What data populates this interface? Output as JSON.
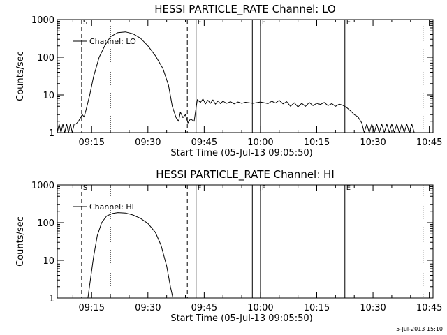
{
  "stamp": "5-Jul-2013 15:10",
  "chart_data": [
    {
      "type": "line",
      "title": "HESSI PARTICLE_RATE Channel: LO",
      "ylabel": "Counts/sec",
      "xlabel": "Start Time (05-Jul-13 09:05:50)",
      "y_scale": "log",
      "ylim": [
        1,
        1000
      ],
      "y_ticks": [
        1,
        10,
        100,
        1000
      ],
      "y_tick_labels": [
        "1",
        "10",
        "100",
        "1000"
      ],
      "xlim": [
        "09:05:50",
        "10:46:00"
      ],
      "x_ticks": [
        "09:15",
        "09:30",
        "09:45",
        "10:00",
        "10:15",
        "10:30",
        "10:45"
      ],
      "grid": false,
      "legend": {
        "position": "top-left",
        "label": "Channel: LO"
      },
      "flags": [
        {
          "label": "S",
          "time": "09:12:20",
          "style": "dashed"
        },
        {
          "label": "",
          "time": "09:20:00",
          "style": "dotted"
        },
        {
          "label": "",
          "time": "09:40:30",
          "style": "dashed"
        },
        {
          "label": "F",
          "time": "09:42:50",
          "style": "solid"
        },
        {
          "label": "",
          "time": "09:57:50",
          "style": "solid"
        },
        {
          "label": "F",
          "time": "10:00:00",
          "style": "solid"
        },
        {
          "label": "E",
          "time": "10:22:30",
          "style": "solid"
        },
        {
          "label": "",
          "time": "10:43:20",
          "style": "dotted"
        }
      ],
      "series": [
        {
          "name": "Channel: LO",
          "points": [
            [
              "09:05:50",
              1.0
            ],
            [
              "09:06:20",
              1.7
            ],
            [
              "09:06:50",
              1.0
            ],
            [
              "09:07:20",
              1.7
            ],
            [
              "09:07:50",
              1.0
            ],
            [
              "09:08:20",
              1.7
            ],
            [
              "09:08:50",
              1.0
            ],
            [
              "09:09:20",
              1.7
            ],
            [
              "09:09:50",
              1.0
            ],
            [
              "09:10:20",
              1.7
            ],
            [
              "09:10:50",
              1.7
            ],
            [
              "09:11:30",
              2.0
            ],
            [
              "09:12:30",
              3.0
            ],
            [
              "09:13:00",
              2.6
            ],
            [
              "09:13:30",
              4.0
            ],
            [
              "09:14:30",
              10
            ],
            [
              "09:15:30",
              30
            ],
            [
              "09:17:00",
              100
            ],
            [
              "09:18:30",
              200
            ],
            [
              "09:20:00",
              350
            ],
            [
              "09:22:00",
              450
            ],
            [
              "09:24:00",
              470
            ],
            [
              "09:26:00",
              420
            ],
            [
              "09:28:00",
              320
            ],
            [
              "09:30:00",
              200
            ],
            [
              "09:32:00",
              110
            ],
            [
              "09:34:00",
              50
            ],
            [
              "09:35:30",
              18
            ],
            [
              "09:36:30",
              5
            ],
            [
              "09:37:30",
              2.5
            ],
            [
              "09:38:10",
              2.0
            ],
            [
              "09:38:40",
              3.5
            ],
            [
              "09:39:20",
              2.5
            ],
            [
              "09:40:00",
              3.0
            ],
            [
              "09:40:40",
              1.8
            ],
            [
              "09:41:20",
              2.3
            ],
            [
              "09:42:20",
              2.0
            ],
            [
              "09:43:10",
              7.5
            ],
            [
              "09:44:00",
              6.3
            ],
            [
              "09:44:40",
              7.8
            ],
            [
              "09:45:20",
              5.8
            ],
            [
              "09:46:00",
              7.2
            ],
            [
              "09:46:40",
              6.0
            ],
            [
              "09:47:20",
              7.4
            ],
            [
              "09:48:00",
              5.7
            ],
            [
              "09:48:40",
              7.0
            ],
            [
              "09:49:20",
              5.9
            ],
            [
              "09:50:00",
              6.8
            ],
            [
              "09:51:00",
              6.0
            ],
            [
              "09:52:00",
              6.6
            ],
            [
              "09:53:00",
              5.8
            ],
            [
              "09:54:00",
              6.5
            ],
            [
              "09:55:00",
              6.0
            ],
            [
              "09:56:00",
              6.4
            ],
            [
              "09:58:00",
              6.0
            ],
            [
              "10:00:00",
              6.5
            ],
            [
              "10:02:00",
              5.9
            ],
            [
              "10:03:00",
              6.8
            ],
            [
              "10:04:00",
              6.1
            ],
            [
              "10:05:00",
              7.2
            ],
            [
              "10:06:00",
              5.8
            ],
            [
              "10:07:00",
              6.6
            ],
            [
              "10:08:00",
              5.0
            ],
            [
              "10:09:00",
              6.2
            ],
            [
              "10:10:00",
              4.8
            ],
            [
              "10:11:00",
              6.0
            ],
            [
              "10:12:00",
              5.0
            ],
            [
              "10:13:00",
              6.3
            ],
            [
              "10:14:00",
              5.2
            ],
            [
              "10:15:00",
              6.0
            ],
            [
              "10:16:00",
              5.6
            ],
            [
              "10:17:00",
              6.3
            ],
            [
              "10:18:00",
              5.2
            ],
            [
              "10:19:00",
              5.9
            ],
            [
              "10:20:00",
              5.0
            ],
            [
              "10:21:00",
              5.7
            ],
            [
              "10:22:00",
              5.3
            ],
            [
              "10:23:00",
              4.6
            ],
            [
              "10:24:00",
              3.8
            ],
            [
              "10:25:00",
              3.0
            ],
            [
              "10:26:00",
              2.6
            ],
            [
              "10:27:00",
              1.8
            ],
            [
              "10:27:40",
              1.0
            ],
            [
              "10:28:20",
              1.7
            ],
            [
              "10:29:00",
              1.0
            ],
            [
              "10:29:40",
              1.7
            ],
            [
              "10:30:20",
              1.0
            ],
            [
              "10:31:00",
              1.7
            ],
            [
              "10:31:40",
              1.0
            ],
            [
              "10:32:20",
              1.7
            ],
            [
              "10:33:00",
              1.0
            ],
            [
              "10:33:40",
              1.7
            ],
            [
              "10:34:20",
              1.0
            ],
            [
              "10:35:00",
              1.7
            ],
            [
              "10:35:40",
              1.0
            ],
            [
              "10:36:20",
              1.7
            ],
            [
              "10:37:00",
              1.0
            ],
            [
              "10:37:40",
              1.7
            ],
            [
              "10:38:20",
              1.0
            ],
            [
              "10:39:00",
              1.7
            ],
            [
              "10:39:40",
              1.0
            ],
            [
              "10:40:20",
              1.7
            ],
            [
              "10:41:00",
              1.0
            ]
          ]
        }
      ]
    },
    {
      "type": "line",
      "title": "HESSI PARTICLE_RATE Channel: HI",
      "ylabel": "Counts/sec",
      "xlabel": "Start Time (05-Jul-13 09:05:50)",
      "y_scale": "log",
      "ylim": [
        1,
        1000
      ],
      "y_ticks": [
        1,
        10,
        100,
        1000
      ],
      "y_tick_labels": [
        "1",
        "10",
        "100",
        "1000"
      ],
      "xlim": [
        "09:05:50",
        "10:46:00"
      ],
      "x_ticks": [
        "09:15",
        "09:30",
        "09:45",
        "10:00",
        "10:15",
        "10:30",
        "10:45"
      ],
      "grid": false,
      "legend": {
        "position": "top-left",
        "label": "Channel: HI"
      },
      "flags": [
        {
          "label": "S",
          "time": "09:12:20",
          "style": "dashed"
        },
        {
          "label": "",
          "time": "09:20:00",
          "style": "dotted"
        },
        {
          "label": "",
          "time": "09:40:30",
          "style": "dashed"
        },
        {
          "label": "F",
          "time": "09:42:50",
          "style": "solid"
        },
        {
          "label": "",
          "time": "09:57:50",
          "style": "solid"
        },
        {
          "label": "F",
          "time": "10:00:00",
          "style": "solid"
        },
        {
          "label": "E",
          "time": "10:22:30",
          "style": "solid"
        },
        {
          "label": "",
          "time": "10:43:20",
          "style": "dotted"
        }
      ],
      "series": [
        {
          "name": "Channel: HI",
          "points": [
            [
              "09:14:00",
              1.0
            ],
            [
              "09:14:40",
              3.0
            ],
            [
              "09:15:30",
              12
            ],
            [
              "09:16:30",
              45
            ],
            [
              "09:17:40",
              100
            ],
            [
              "09:19:00",
              150
            ],
            [
              "09:20:30",
              175
            ],
            [
              "09:22:00",
              185
            ],
            [
              "09:24:00",
              180
            ],
            [
              "09:26:00",
              160
            ],
            [
              "09:28:00",
              130
            ],
            [
              "09:30:00",
              95
            ],
            [
              "09:32:00",
              55
            ],
            [
              "09:33:30",
              25
            ],
            [
              "09:35:00",
              7
            ],
            [
              "09:36:00",
              2
            ],
            [
              "09:36:40",
              1.0
            ]
          ]
        }
      ]
    }
  ]
}
